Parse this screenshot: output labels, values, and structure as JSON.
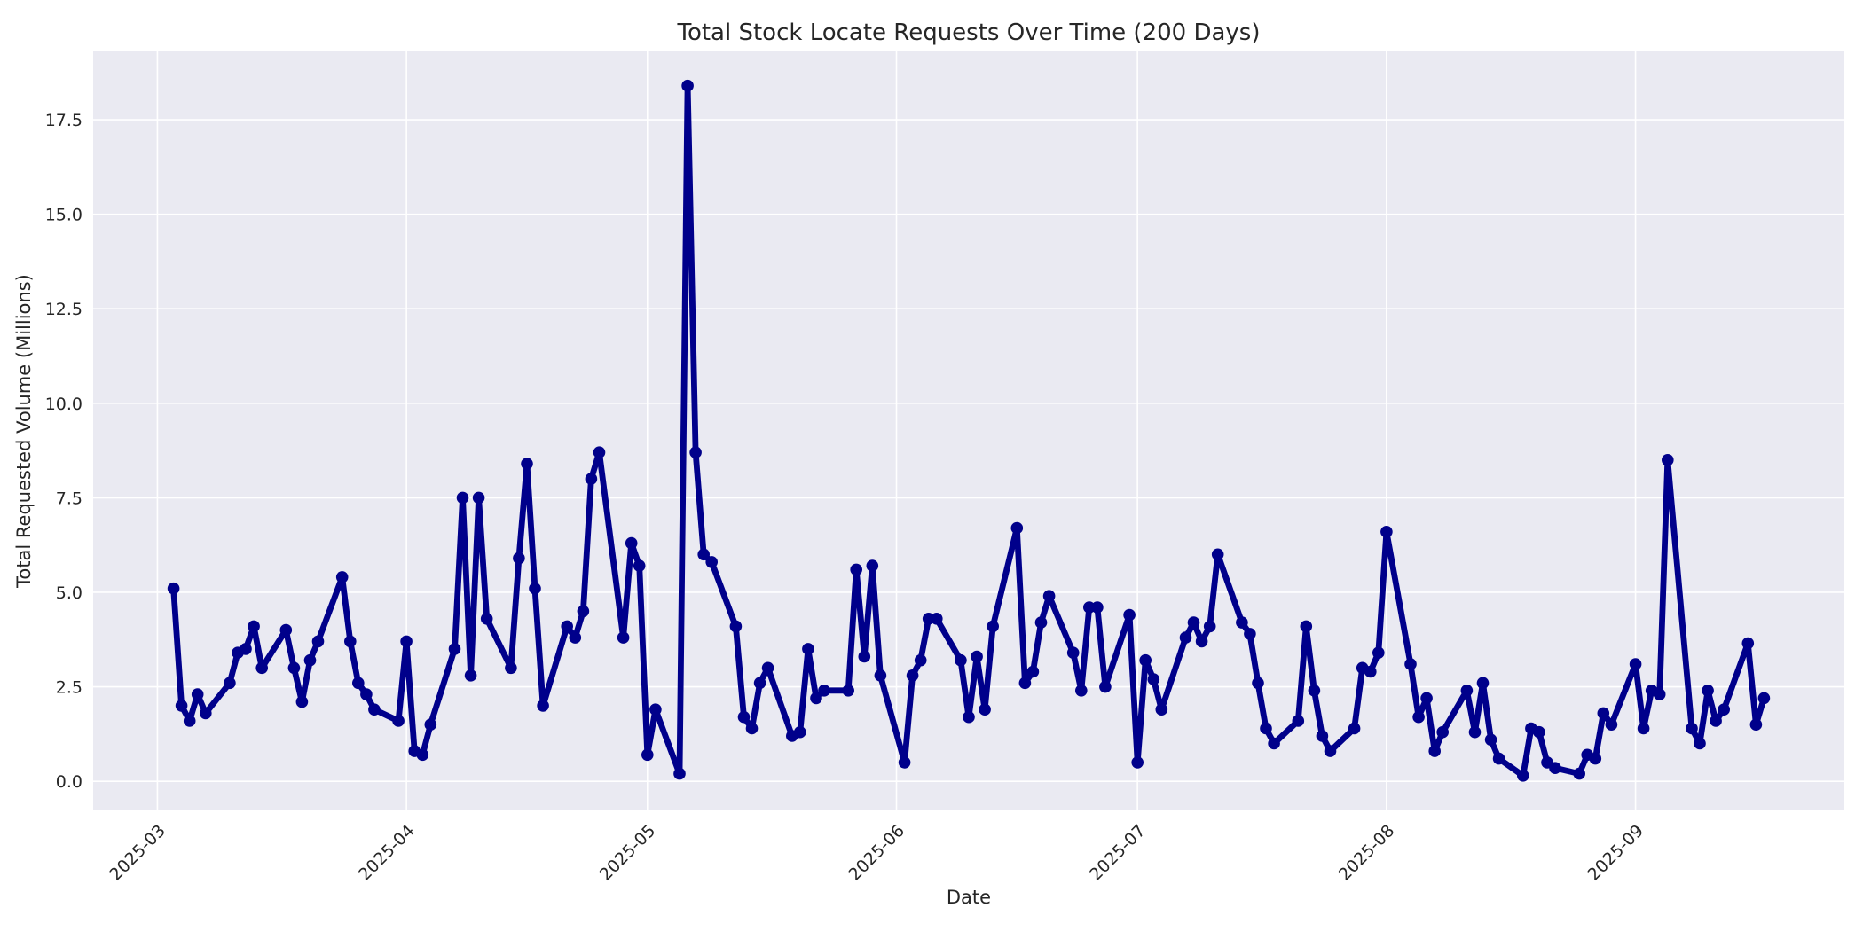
{
  "figure": {
    "background_color": "#FFFFFF"
  },
  "chart_data": {
    "type": "line",
    "title": "Total Stock Locate Requests Over Time (200 Days)",
    "xlabel": "Date",
    "ylabel": "Total Requested Volume (Millions)",
    "grid": true,
    "legend": false,
    "plot_bg_color": "#EAEAF2",
    "grid_color": "#FFFFFF",
    "line_color": "#00008B",
    "marker_color": "#00008B",
    "text_color": "#262626",
    "marker": "o",
    "xlim": [
      "2025-02-21",
      "2025-09-27"
    ],
    "ylim": [
      -0.77,
      19.33
    ],
    "y_ticks": [
      {
        "label": "0.0",
        "value": 0
      },
      {
        "label": "2.5",
        "value": 2.5
      },
      {
        "label": "5.0",
        "value": 5
      },
      {
        "label": "7.5",
        "value": 7.5
      },
      {
        "label": "10.0",
        "value": 10
      },
      {
        "label": "12.5",
        "value": 12.5
      },
      {
        "label": "15.0",
        "value": 15
      },
      {
        "label": "17.5",
        "value": 17.5
      }
    ],
    "x_ticks": [
      {
        "label": "2025-03",
        "date": "2025-03-01"
      },
      {
        "label": "2025-04",
        "date": "2025-04-01"
      },
      {
        "label": "2025-05",
        "date": "2025-05-01"
      },
      {
        "label": "2025-06",
        "date": "2025-06-01"
      },
      {
        "label": "2025-07",
        "date": "2025-07-01"
      },
      {
        "label": "2025-08",
        "date": "2025-08-01"
      },
      {
        "label": "2025-09",
        "date": "2025-09-01"
      }
    ],
    "series": [
      {
        "name": "total_requested_volume_millions",
        "dates": [
          "2025-03-03",
          "2025-03-04",
          "2025-03-05",
          "2025-03-06",
          "2025-03-07",
          "2025-03-10",
          "2025-03-11",
          "2025-03-12",
          "2025-03-13",
          "2025-03-14",
          "2025-03-17",
          "2025-03-18",
          "2025-03-19",
          "2025-03-20",
          "2025-03-21",
          "2025-03-24",
          "2025-03-25",
          "2025-03-26",
          "2025-03-27",
          "2025-03-28",
          "2025-03-31",
          "2025-04-01",
          "2025-04-02",
          "2025-04-03",
          "2025-04-04",
          "2025-04-07",
          "2025-04-08",
          "2025-04-09",
          "2025-04-10",
          "2025-04-11",
          "2025-04-14",
          "2025-04-15",
          "2025-04-16",
          "2025-04-17",
          "2025-04-18",
          "2025-04-21",
          "2025-04-22",
          "2025-04-23",
          "2025-04-24",
          "2025-04-25",
          "2025-04-28",
          "2025-04-29",
          "2025-04-30",
          "2025-05-01",
          "2025-05-02",
          "2025-05-05",
          "2025-05-06",
          "2025-05-07",
          "2025-05-08",
          "2025-05-09",
          "2025-05-12",
          "2025-05-13",
          "2025-05-14",
          "2025-05-15",
          "2025-05-16",
          "2025-05-19",
          "2025-05-20",
          "2025-05-21",
          "2025-05-22",
          "2025-05-23",
          "2025-05-26",
          "2025-05-27",
          "2025-05-28",
          "2025-05-29",
          "2025-05-30",
          "2025-06-02",
          "2025-06-03",
          "2025-06-04",
          "2025-06-05",
          "2025-06-06",
          "2025-06-09",
          "2025-06-10",
          "2025-06-11",
          "2025-06-12",
          "2025-06-13",
          "2025-06-16",
          "2025-06-17",
          "2025-06-18",
          "2025-06-19",
          "2025-06-20",
          "2025-06-23",
          "2025-06-24",
          "2025-06-25",
          "2025-06-26",
          "2025-06-27",
          "2025-06-30",
          "2025-07-01",
          "2025-07-02",
          "2025-07-03",
          "2025-07-04",
          "2025-07-07",
          "2025-07-08",
          "2025-07-09",
          "2025-07-10",
          "2025-07-11",
          "2025-07-14",
          "2025-07-15",
          "2025-07-16",
          "2025-07-17",
          "2025-07-18",
          "2025-07-21",
          "2025-07-22",
          "2025-07-23",
          "2025-07-24",
          "2025-07-25",
          "2025-07-28",
          "2025-07-29",
          "2025-07-30",
          "2025-07-31",
          "2025-08-01",
          "2025-08-04",
          "2025-08-05",
          "2025-08-06",
          "2025-08-07",
          "2025-08-08",
          "2025-08-11",
          "2025-08-12",
          "2025-08-13",
          "2025-08-14",
          "2025-08-15",
          "2025-08-18",
          "2025-08-19",
          "2025-08-20",
          "2025-08-21",
          "2025-08-22",
          "2025-08-25",
          "2025-08-26",
          "2025-08-27",
          "2025-08-28",
          "2025-08-29",
          "2025-09-01",
          "2025-09-02",
          "2025-09-03",
          "2025-09-04",
          "2025-09-05",
          "2025-09-08",
          "2025-09-09",
          "2025-09-10",
          "2025-09-11",
          "2025-09-12",
          "2025-09-15",
          "2025-09-16",
          "2025-09-17"
        ],
        "values": [
          5.1,
          2.0,
          1.6,
          2.3,
          1.8,
          2.6,
          3.4,
          3.5,
          4.1,
          3.0,
          4.0,
          3.0,
          2.1,
          3.2,
          3.7,
          5.4,
          3.7,
          2.6,
          2.3,
          1.9,
          1.6,
          3.7,
          0.8,
          0.7,
          1.5,
          3.5,
          7.5,
          2.8,
          7.5,
          4.3,
          3.0,
          5.9,
          8.4,
          5.1,
          2.0,
          4.1,
          3.8,
          4.5,
          8.0,
          8.7,
          3.8,
          6.3,
          5.7,
          0.7,
          1.9,
          0.2,
          18.4,
          8.7,
          6.0,
          5.8,
          4.1,
          1.7,
          1.4,
          2.6,
          3.0,
          1.2,
          1.3,
          3.5,
          2.2,
          2.4,
          2.4,
          5.6,
          3.3,
          5.7,
          2.8,
          0.5,
          2.8,
          3.2,
          4.3,
          4.3,
          3.2,
          1.7,
          3.3,
          1.9,
          4.1,
          6.7,
          2.6,
          2.9,
          4.2,
          4.9,
          3.4,
          2.4,
          4.6,
          4.6,
          2.5,
          4.4,
          0.5,
          3.2,
          2.7,
          1.9,
          3.8,
          4.2,
          3.7,
          4.1,
          6.0,
          4.2,
          3.9,
          2.6,
          1.4,
          1.0,
          1.6,
          4.1,
          2.4,
          1.2,
          0.8,
          1.4,
          3.0,
          2.9,
          3.4,
          6.6,
          3.1,
          1.7,
          2.2,
          0.8,
          1.3,
          2.4,
          1.3,
          2.6,
          1.1,
          0.6,
          0.15,
          1.4,
          1.3,
          0.5,
          0.35,
          0.2,
          0.7,
          0.6,
          1.8,
          1.5,
          3.1,
          1.4,
          2.4,
          2.3,
          8.5,
          1.4,
          1.0,
          2.4,
          1.6,
          1.9,
          3.65,
          1.5,
          2.2
        ]
      }
    ]
  }
}
